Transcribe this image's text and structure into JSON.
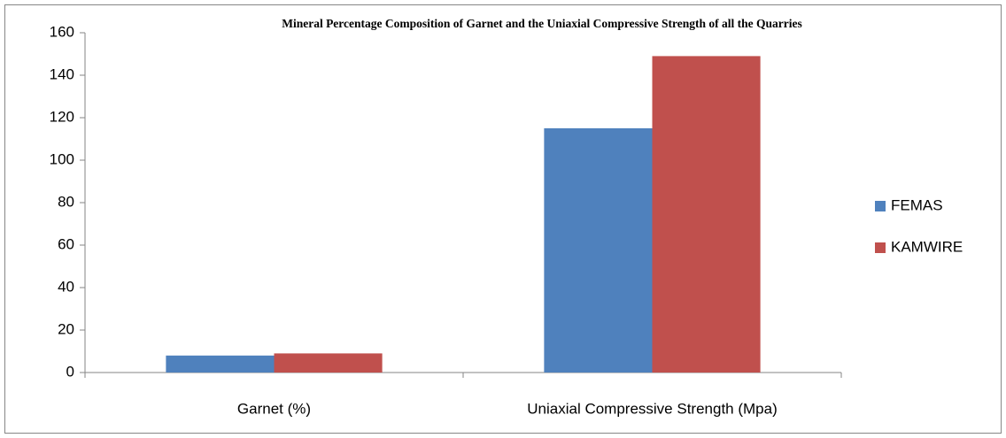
{
  "chart_data": {
    "type": "bar",
    "title": "Mineral Percentage Composition of Garnet and the Uniaxial Compressive Strength of all the Quarries",
    "categories": [
      "Garnet (%)",
      "Uniaxial Compressive Strength (Mpa)"
    ],
    "series": [
      {
        "name": "FEMAS",
        "color": "#4f81bd",
        "values": [
          8,
          115
        ]
      },
      {
        "name": "KAMWIRE",
        "color": "#c0504d",
        "values": [
          9,
          149
        ]
      }
    ],
    "ylim": [
      0,
      160
    ],
    "yticks": [
      0,
      20,
      40,
      60,
      80,
      100,
      120,
      140,
      160
    ],
    "grid": false,
    "legend": "right"
  }
}
